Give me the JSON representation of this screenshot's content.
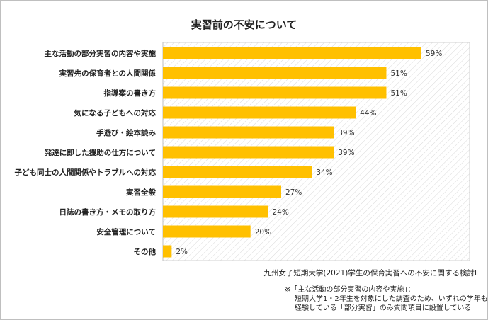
{
  "chart_data": {
    "type": "bar",
    "orientation": "horizontal",
    "title": "実習前の不安について",
    "categories": [
      "主な活動の部分実習の内容や実施",
      "実習先の保育者との人間関係",
      "指導案の書き方",
      "気になる子どもへの対応",
      "手遊び・絵本読み",
      "発達に即した援助の仕方について",
      "子ども同士の人間関係やトラブルへの対応",
      "実習全般",
      "日誌の書き方・メモの取り方",
      "安全管理について",
      "その他"
    ],
    "values": [
      59,
      51,
      51,
      44,
      39,
      39,
      34,
      27,
      24,
      20,
      2
    ],
    "value_labels": [
      "59%",
      "51%",
      "51%",
      "44%",
      "39%",
      "39%",
      "34%",
      "27%",
      "24%",
      "20%",
      "2%"
    ],
    "xlim": [
      0,
      70
    ],
    "bar_color": "#FFC000",
    "grid": false,
    "plot_background": "diagonal-hatch"
  },
  "source_text": "九州女子短期大学(2021)学生の保育実習への不安に関する検討Ⅱ",
  "note": {
    "line1": "※「主な活動の部分実習の内容や実施」：",
    "line2": "短期大学1・2年生を対象にした調査のため、いずれの学年も",
    "line3": "経験している「部分実習」のみ質問項目に設置している"
  }
}
